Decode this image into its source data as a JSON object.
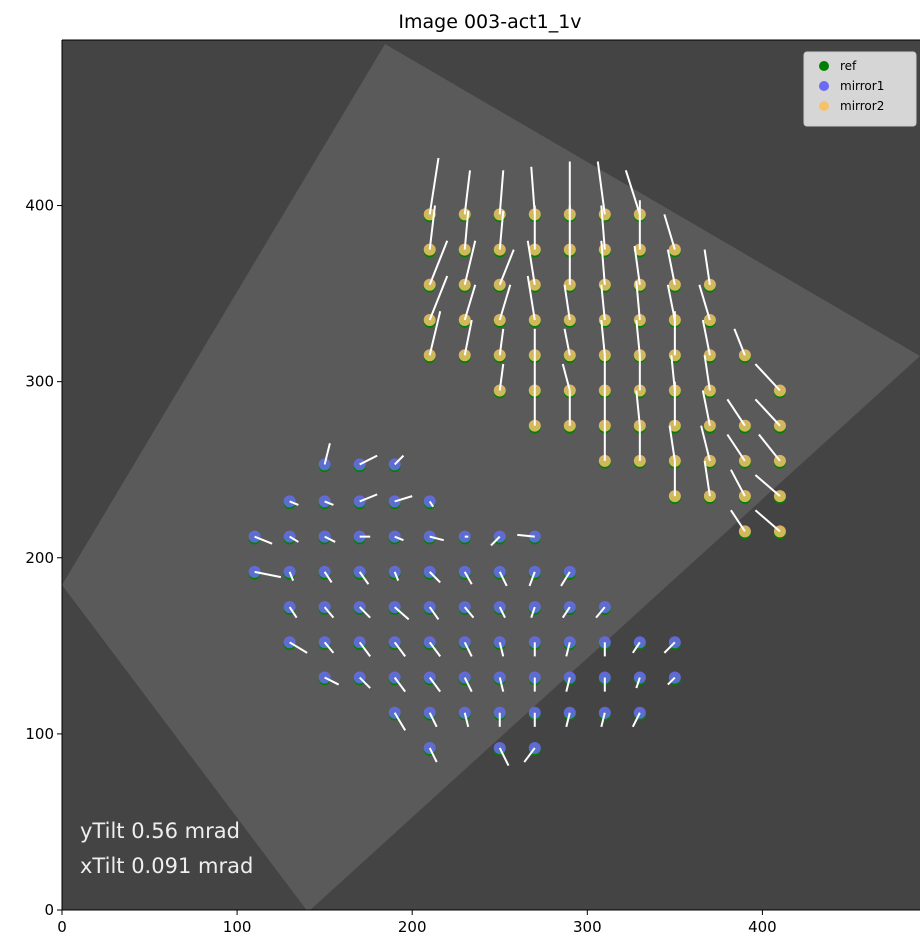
{
  "chart_data": {
    "type": "scatter",
    "title": "Image 003-act1_1v",
    "xlim": [
      0,
      490
    ],
    "ylim": [
      0,
      494
    ],
    "xticks": [
      0,
      100,
      200,
      300,
      400
    ],
    "yticks": [
      0,
      100,
      200,
      300,
      400
    ],
    "legend": "upper right",
    "annotations": [
      "yTilt 0.56 mrad",
      "xTilt 0.091 mrad"
    ],
    "series": [
      {
        "name": "ref",
        "color": "#008000",
        "x": [
          210,
          230,
          250,
          270,
          290,
          310,
          330,
          210,
          230,
          250,
          270,
          290,
          310,
          330,
          350,
          210,
          230,
          250,
          270,
          290,
          310,
          330,
          350,
          370,
          210,
          230,
          250,
          270,
          290,
          310,
          330,
          350,
          370,
          210,
          230,
          250,
          270,
          290,
          310,
          330,
          350,
          370,
          390,
          250,
          270,
          290,
          310,
          330,
          350,
          370,
          410,
          270,
          290,
          310,
          330,
          350,
          370,
          390,
          410,
          310,
          330,
          350,
          370,
          390,
          410,
          350,
          370,
          390,
          410,
          390,
          410,
          150,
          170,
          190,
          130,
          150,
          170,
          190,
          210,
          110,
          130,
          150,
          170,
          190,
          210,
          230,
          250,
          270,
          110,
          130,
          150,
          170,
          190,
          210,
          230,
          250,
          270,
          290,
          130,
          150,
          170,
          190,
          210,
          230,
          250,
          270,
          290,
          310,
          130,
          150,
          170,
          190,
          210,
          230,
          250,
          270,
          290,
          310,
          330,
          350,
          150,
          170,
          190,
          210,
          230,
          250,
          270,
          290,
          310,
          330,
          350,
          190,
          210,
          230,
          250,
          270,
          290,
          310,
          330,
          210,
          250,
          270
        ],
        "y": [
          394,
          394,
          394,
          394,
          394,
          394,
          394,
          374,
          374,
          374,
          374,
          374,
          374,
          374,
          374,
          354,
          354,
          354,
          354,
          354,
          354,
          354,
          354,
          354,
          334,
          334,
          334,
          334,
          334,
          334,
          334,
          334,
          334,
          314,
          314,
          314,
          314,
          314,
          314,
          314,
          314,
          314,
          314,
          294,
          294,
          294,
          294,
          294,
          294,
          294,
          294,
          274,
          274,
          274,
          274,
          274,
          274,
          274,
          274,
          254,
          254,
          254,
          254,
          254,
          254,
          234,
          234,
          234,
          234,
          214,
          214,
          252,
          252,
          252,
          231,
          231,
          231,
          231,
          231,
          211,
          211,
          211,
          211,
          211,
          211,
          211,
          211,
          211,
          191,
          191,
          191,
          191,
          191,
          191,
          191,
          191,
          191,
          191,
          171,
          171,
          171,
          171,
          171,
          171,
          171,
          171,
          171,
          171,
          151,
          151,
          151,
          151,
          151,
          151,
          151,
          151,
          151,
          151,
          151,
          151,
          131,
          131,
          131,
          131,
          131,
          131,
          131,
          131,
          131,
          131,
          131,
          111,
          111,
          111,
          111,
          111,
          111,
          111,
          111,
          91,
          91,
          91
        ]
      },
      {
        "name": "mirror1",
        "color": "#6b6bf2",
        "x": [
          150,
          170,
          190,
          130,
          150,
          170,
          190,
          210,
          110,
          130,
          150,
          170,
          190,
          210,
          230,
          250,
          270,
          110,
          130,
          150,
          170,
          190,
          210,
          230,
          250,
          270,
          290,
          130,
          150,
          170,
          190,
          210,
          230,
          250,
          270,
          290,
          310,
          130,
          150,
          170,
          190,
          210,
          230,
          250,
          270,
          290,
          310,
          330,
          350,
          150,
          170,
          190,
          210,
          230,
          250,
          270,
          290,
          310,
          330,
          350,
          190,
          210,
          230,
          250,
          270,
          290,
          310,
          330,
          210,
          250,
          270
        ],
        "y": [
          253,
          253,
          253,
          232,
          232,
          232,
          232,
          232,
          212,
          212,
          212,
          212,
          212,
          212,
          212,
          212,
          212,
          192,
          192,
          192,
          192,
          192,
          192,
          192,
          192,
          192,
          192,
          172,
          172,
          172,
          172,
          172,
          172,
          172,
          172,
          172,
          172,
          152,
          152,
          152,
          152,
          152,
          152,
          152,
          152,
          152,
          152,
          152,
          152,
          132,
          132,
          132,
          132,
          132,
          132,
          132,
          132,
          132,
          132,
          132,
          112,
          112,
          112,
          112,
          112,
          112,
          112,
          112,
          92,
          92,
          92
        ],
        "dx": [
          3,
          10,
          5,
          5,
          5,
          10,
          10,
          2,
          10,
          5,
          6,
          6,
          5,
          8,
          2,
          -5,
          -10,
          15,
          2,
          4,
          5,
          2,
          6,
          4,
          4,
          -3,
          -5,
          4,
          5,
          6,
          8,
          5,
          5,
          3,
          -2,
          -4,
          -5,
          10,
          5,
          6,
          6,
          6,
          4,
          2,
          0,
          -2,
          0,
          -4,
          -6,
          8,
          6,
          6,
          6,
          4,
          2,
          0,
          -2,
          0,
          -2,
          -4,
          6,
          4,
          2,
          0,
          0,
          -2,
          -2,
          -4,
          4,
          5,
          -6
        ],
        "dy": [
          12,
          5,
          5,
          -2,
          -2,
          4,
          3,
          -3,
          -4,
          -3,
          -3,
          0,
          -2,
          -2,
          0,
          -5,
          1,
          -3,
          -5,
          -6,
          -7,
          -5,
          -6,
          -7,
          -8,
          -8,
          -8,
          -6,
          -6,
          -6,
          -7,
          -7,
          -6,
          -6,
          -6,
          -6,
          -6,
          -6,
          -6,
          -8,
          -8,
          -8,
          -8,
          -8,
          -8,
          -8,
          -8,
          -6,
          -6,
          -4,
          -6,
          -8,
          -8,
          -8,
          -8,
          -8,
          -8,
          -8,
          -6,
          -4,
          -10,
          -8,
          -8,
          -8,
          -8,
          -8,
          -8,
          -8,
          -8,
          -10,
          -8
        ]
      },
      {
        "name": "mirror2",
        "color": "#f5c26b",
        "x": [
          210,
          230,
          250,
          270,
          290,
          310,
          330,
          210,
          230,
          250,
          270,
          290,
          310,
          330,
          350,
          210,
          230,
          250,
          270,
          290,
          310,
          330,
          350,
          370,
          210,
          230,
          250,
          270,
          290,
          310,
          330,
          350,
          370,
          210,
          230,
          250,
          270,
          290,
          310,
          330,
          350,
          370,
          390,
          250,
          270,
          290,
          310,
          330,
          350,
          370,
          410,
          270,
          290,
          310,
          330,
          350,
          370,
          390,
          410,
          310,
          330,
          350,
          370,
          390,
          410,
          350,
          370,
          390,
          410,
          390,
          410
        ],
        "y": [
          395,
          395,
          395,
          395,
          395,
          395,
          395,
          375,
          375,
          375,
          375,
          375,
          375,
          375,
          375,
          355,
          355,
          355,
          355,
          355,
          355,
          355,
          355,
          355,
          335,
          335,
          335,
          335,
          335,
          335,
          335,
          335,
          335,
          315,
          315,
          315,
          315,
          315,
          315,
          315,
          315,
          315,
          315,
          295,
          295,
          295,
          295,
          295,
          295,
          295,
          295,
          275,
          275,
          275,
          275,
          275,
          275,
          275,
          275,
          255,
          255,
          255,
          255,
          255,
          255,
          235,
          235,
          235,
          235,
          215,
          215
        ],
        "dx": [
          5,
          3,
          2,
          -2,
          0,
          -4,
          -8,
          3,
          2,
          2,
          0,
          0,
          -2,
          0,
          -6,
          10,
          6,
          8,
          -4,
          0,
          -2,
          -3,
          -4,
          -3,
          10,
          6,
          6,
          -4,
          -3,
          -2,
          -2,
          -4,
          -6,
          6,
          4,
          2,
          0,
          -3,
          -2,
          -2,
          0,
          -4,
          -6,
          2,
          0,
          -4,
          0,
          0,
          -2,
          -3,
          -14,
          0,
          0,
          0,
          -2,
          0,
          -4,
          -10,
          -14,
          0,
          0,
          -3,
          -5,
          -10,
          -12,
          0,
          -3,
          -8,
          -14,
          -8,
          -14
        ],
        "dy": [
          32,
          25,
          25,
          27,
          30,
          30,
          25,
          25,
          22,
          22,
          25,
          25,
          25,
          28,
          20,
          25,
          25,
          20,
          25,
          22,
          25,
          22,
          20,
          20,
          25,
          20,
          20,
          25,
          20,
          20,
          22,
          20,
          20,
          25,
          20,
          15,
          15,
          15,
          20,
          20,
          25,
          20,
          15,
          15,
          20,
          15,
          20,
          20,
          20,
          20,
          15,
          20,
          20,
          20,
          20,
          25,
          20,
          15,
          15,
          20,
          20,
          20,
          20,
          15,
          15,
          20,
          20,
          15,
          12,
          12,
          12
        ]
      }
    ]
  }
}
